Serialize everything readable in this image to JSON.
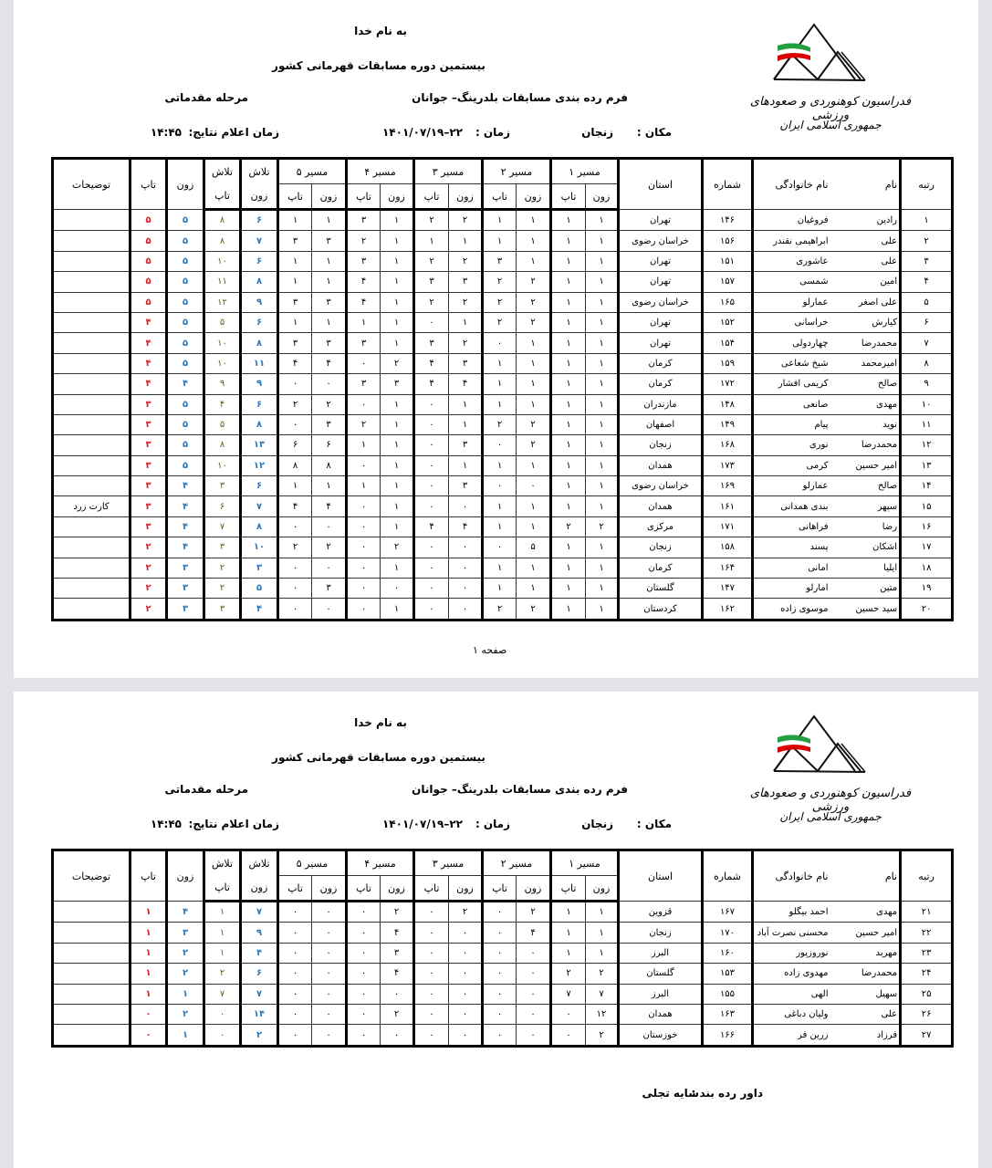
{
  "header": {
    "bismillah": "به نام خدا",
    "event": "بیستمین دوره مسابقات قهرمانی کشور",
    "form_title": "فرم رده بندی مسابقات بلدرینگ– جوانان",
    "stage": "مرحله مقدماتی",
    "place_label": "مکان :",
    "place": "زنجان",
    "date_label": "زمان :",
    "date": "۱۴۰۱/۰۷/۱۹–۲۲",
    "results_time_label": "زمان اعلام نتایج:",
    "results_time": "۱۴:۴۵"
  },
  "logo": {
    "line1": "فدراسیون کوهنوردی و صعودهای ورزشی",
    "line2": "جمهوری اسلامی ایران",
    "flag_colors": [
      "#239f40",
      "#ffffff",
      "#da0000"
    ]
  },
  "columns": {
    "rank": "رتبه",
    "name": "نام",
    "family": "نام خانوادگی",
    "number": "شماره",
    "province": "استان",
    "routes": [
      "مسیر ۱",
      "مسیر ۲",
      "مسیر ۳",
      "مسیر ۴",
      "مسیر ۵"
    ],
    "zone": "زون",
    "top": "تاپ",
    "attempts": "تلاش",
    "notes": "توضیحات"
  },
  "colors": {
    "top": "#d2232a",
    "zone": "#2a7bc0",
    "attempts_top": "#5f5f22"
  },
  "pages": [
    {
      "footer": "صفحه ۱",
      "rows": [
        [
          "۱",
          "رادین",
          "فروغیان",
          "۱۴۶",
          "تهران",
          "۱",
          "۱",
          "۱",
          "۱",
          "۲",
          "۲",
          "۱",
          "۳",
          "۱",
          "۱",
          "۶",
          "۸",
          "۵",
          "۵",
          ""
        ],
        [
          "۲",
          "علی",
          "ابراهیمی نقندر",
          "۱۵۶",
          "خراسان رضوی",
          "۱",
          "۱",
          "۱",
          "۱",
          "۱",
          "۱",
          "۱",
          "۲",
          "۳",
          "۳",
          "۷",
          "۸",
          "۵",
          "۵",
          ""
        ],
        [
          "۳",
          "علی",
          "عاشوری",
          "۱۵۱",
          "تهران",
          "۱",
          "۱",
          "۱",
          "۳",
          "۲",
          "۲",
          "۱",
          "۳",
          "۱",
          "۱",
          "۶",
          "۱۰",
          "۵",
          "۵",
          ""
        ],
        [
          "۴",
          "امین",
          "شمسی",
          "۱۵۷",
          "تهران",
          "۱",
          "۱",
          "۲",
          "۲",
          "۳",
          "۳",
          "۱",
          "۴",
          "۱",
          "۱",
          "۸",
          "۱۱",
          "۵",
          "۵",
          ""
        ],
        [
          "۵",
          "علی اصغر",
          "عمارلو",
          "۱۶۵",
          "خراسان رضوی",
          "۱",
          "۱",
          "۲",
          "۲",
          "۲",
          "۲",
          "۱",
          "۴",
          "۳",
          "۳",
          "۹",
          "۱۲",
          "۵",
          "۵",
          ""
        ],
        [
          "۶",
          "کیارش",
          "خراسانی",
          "۱۵۲",
          "تهران",
          "۱",
          "۱",
          "۲",
          "۲",
          "۱",
          "۰",
          "۱",
          "۱",
          "۱",
          "۱",
          "۶",
          "۵",
          "۵",
          "۴",
          ""
        ],
        [
          "۷",
          "محمدرضا",
          "چهاردولی",
          "۱۵۴",
          "تهران",
          "۱",
          "۱",
          "۱",
          "۰",
          "۲",
          "۳",
          "۱",
          "۳",
          "۳",
          "۳",
          "۸",
          "۱۰",
          "۵",
          "۴",
          ""
        ],
        [
          "۸",
          "امیرمحمد",
          "شیخ شعاعی",
          "۱۵۹",
          "کرمان",
          "۱",
          "۱",
          "۱",
          "۱",
          "۳",
          "۴",
          "۲",
          "۰",
          "۴",
          "۴",
          "۱۱",
          "۱۰",
          "۵",
          "۴",
          ""
        ],
        [
          "۹",
          "صالح",
          "کریمی افشار",
          "۱۷۲",
          "کرمان",
          "۱",
          "۱",
          "۱",
          "۱",
          "۴",
          "۴",
          "۳",
          "۳",
          "۰",
          "۰",
          "۹",
          "۹",
          "۴",
          "۴",
          ""
        ],
        [
          "۱۰",
          "مهدی",
          "صانعی",
          "۱۴۸",
          "مازندران",
          "۱",
          "۱",
          "۱",
          "۱",
          "۱",
          "۰",
          "۱",
          "۰",
          "۲",
          "۲",
          "۶",
          "۴",
          "۵",
          "۳",
          ""
        ],
        [
          "۱۱",
          "نوید",
          "پیام",
          "۱۴۹",
          "اصفهان",
          "۱",
          "۱",
          "۲",
          "۲",
          "۱",
          "۰",
          "۱",
          "۲",
          "۳",
          "۰",
          "۸",
          "۵",
          "۵",
          "۳",
          ""
        ],
        [
          "۱۲",
          "محمدرضا",
          "نوری",
          "۱۶۸",
          "زنجان",
          "۱",
          "۱",
          "۲",
          "۰",
          "۳",
          "۰",
          "۱",
          "۱",
          "۶",
          "۶",
          "۱۳",
          "۸",
          "۵",
          "۳",
          ""
        ],
        [
          "۱۳",
          "امیر حسین",
          "کرمی",
          "۱۷۳",
          "همدان",
          "۱",
          "۱",
          "۱",
          "۱",
          "۱",
          "۰",
          "۱",
          "۰",
          "۸",
          "۸",
          "۱۲",
          "۱۰",
          "۵",
          "۳",
          ""
        ],
        [
          "۱۴",
          "صالح",
          "عمارلو",
          "۱۶۹",
          "خراسان رضوی",
          "۱",
          "۱",
          "۰",
          "۰",
          "۳",
          "۰",
          "۱",
          "۱",
          "۱",
          "۱",
          "۶",
          "۳",
          "۴",
          "۳",
          ""
        ],
        [
          "۱۵",
          "سپهر",
          "بندی همدانی",
          "۱۶۱",
          "همدان",
          "۱",
          "۱",
          "۱",
          "۱",
          "۰",
          "۰",
          "۱",
          "۰",
          "۴",
          "۴",
          "۷",
          "۶",
          "۴",
          "۳",
          "کارت زرد"
        ],
        [
          "۱۶",
          "رضا",
          "فراهانی",
          "۱۷۱",
          "مرکزی",
          "۲",
          "۲",
          "۱",
          "۱",
          "۴",
          "۴",
          "۱",
          "۰",
          "۰",
          "۰",
          "۸",
          "۷",
          "۴",
          "۳",
          ""
        ],
        [
          "۱۷",
          "اشکان",
          "پسند",
          "۱۵۸",
          "زنجان",
          "۱",
          "۱",
          "۵",
          "۰",
          "۰",
          "۰",
          "۲",
          "۰",
          "۲",
          "۲",
          "۱۰",
          "۳",
          "۴",
          "۲",
          ""
        ],
        [
          "۱۸",
          "ایلیا",
          "امانی",
          "۱۶۴",
          "کرمان",
          "۱",
          "۱",
          "۱",
          "۱",
          "۰",
          "۰",
          "۱",
          "۰",
          "۰",
          "۰",
          "۳",
          "۲",
          "۳",
          "۲",
          ""
        ],
        [
          "۱۹",
          "متین",
          "امارلو",
          "۱۴۷",
          "گلستان",
          "۱",
          "۱",
          "۱",
          "۱",
          "۰",
          "۰",
          "۰",
          "۰",
          "۳",
          "۰",
          "۵",
          "۲",
          "۳",
          "۲",
          ""
        ],
        [
          "۲۰",
          "سید حسین",
          "موسوی زاده",
          "۱۶۲",
          "کردستان",
          "۱",
          "۱",
          "۲",
          "۲",
          "۰",
          "۰",
          "۱",
          "۰",
          "۰",
          "۰",
          "۴",
          "۳",
          "۳",
          "۲",
          ""
        ]
      ]
    },
    {
      "footer_label": "داور رده بند :",
      "footer_name": "سایه تجلی",
      "rows": [
        [
          "۲۱",
          "مهدی",
          "احمد بیگلو",
          "۱۶۷",
          "قزوین",
          "۱",
          "۱",
          "۲",
          "۰",
          "۲",
          "۰",
          "۲",
          "۰",
          "۰",
          "۰",
          "۷",
          "۱",
          "۴",
          "۱",
          ""
        ],
        [
          "۲۲",
          "امیر حسین",
          "محسنی نصرت آباد",
          "۱۷۰",
          "زنجان",
          "۱",
          "۱",
          "۴",
          "۰",
          "۰",
          "۰",
          "۴",
          "۰",
          "۰",
          "۰",
          "۹",
          "۱",
          "۳",
          "۱",
          ""
        ],
        [
          "۲۳",
          "مهربد",
          "نوروزپور",
          "۱۶۰",
          "البرز",
          "۱",
          "۱",
          "۰",
          "۰",
          "۰",
          "۰",
          "۳",
          "۰",
          "۰",
          "۰",
          "۴",
          "۱",
          "۲",
          "۱",
          ""
        ],
        [
          "۲۴",
          "محمدرضا",
          "مهدوی زاده",
          "۱۵۳",
          "گلستان",
          "۲",
          "۲",
          "۰",
          "۰",
          "۰",
          "۰",
          "۴",
          "۰",
          "۰",
          "۰",
          "۶",
          "۲",
          "۲",
          "۱",
          ""
        ],
        [
          "۲۵",
          "سهیل",
          "الهی",
          "۱۵۵",
          "البرز",
          "۷",
          "۷",
          "۰",
          "۰",
          "۰",
          "۰",
          "۰",
          "۰",
          "۰",
          "۰",
          "۷",
          "۷",
          "۱",
          "۱",
          ""
        ],
        [
          "۲۶",
          "علی",
          "ولیان دباغی",
          "۱۶۳",
          "همدان",
          "۱۲",
          "۰",
          "۰",
          "۰",
          "۰",
          "۰",
          "۲",
          "۰",
          "۰",
          "۰",
          "۱۴",
          "۰",
          "۲",
          "۰",
          ""
        ],
        [
          "۲۷",
          "فرزاد",
          "زرین فر",
          "۱۶۶",
          "خوزستان",
          "۲",
          "۰",
          "۰",
          "۰",
          "۰",
          "۰",
          "۰",
          "۰",
          "۰",
          "۰",
          "۲",
          "۰",
          "۱",
          "۰",
          ""
        ]
      ]
    }
  ]
}
